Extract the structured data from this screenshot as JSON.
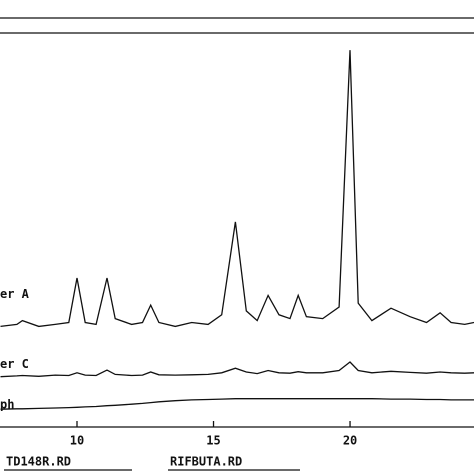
{
  "chart_data": {
    "type": "line",
    "x": [
      7.2,
      7.8,
      8.0,
      8.6,
      9.2,
      9.7,
      10.0,
      10.3,
      10.7,
      11.1,
      11.4,
      12.0,
      12.4,
      12.7,
      13.0,
      13.6,
      14.2,
      14.8,
      15.3,
      15.8,
      16.2,
      16.6,
      17.0,
      17.4,
      17.8,
      18.1,
      18.4,
      19.0,
      19.6,
      20.0,
      20.3,
      20.8,
      21.5,
      22.2,
      22.8,
      23.3,
      23.7,
      24.2,
      24.54
    ],
    "series": [
      {
        "name": "er A",
        "color": "#111111",
        "values": [
          26,
          26.5,
          27.5,
          26,
          26.5,
          27,
          38.5,
          27,
          26.5,
          38.5,
          28,
          26.5,
          27,
          31.5,
          27,
          26,
          27,
          26.5,
          29,
          53,
          30,
          27.5,
          34,
          29,
          28,
          34,
          28.5,
          28,
          31,
          97.4,
          32,
          27.5,
          30.7,
          28.5,
          27,
          29.5,
          27,
          26.5,
          27
        ]
      },
      {
        "name": "er C",
        "color": "#111111",
        "values": [
          13,
          13.2,
          13.3,
          13.1,
          13.4,
          13.3,
          14.0,
          13.4,
          13.3,
          14.7,
          13.6,
          13.3,
          13.4,
          14.2,
          13.5,
          13.4,
          13.5,
          13.6,
          14.0,
          15.2,
          14.2,
          13.8,
          14.6,
          14.0,
          13.9,
          14.3,
          14.0,
          14.0,
          14.6,
          16.8,
          14.6,
          14.0,
          14.4,
          14.1,
          13.9,
          14.2,
          14.0,
          13.9,
          14.0
        ]
      },
      {
        "name": "ph",
        "color": "#111111",
        "values": [
          4.6,
          4.7,
          4.7,
          4.8,
          4.9,
          5.0,
          5.1,
          5.2,
          5.3,
          5.5,
          5.6,
          5.9,
          6.1,
          6.3,
          6.5,
          6.8,
          7.0,
          7.1,
          7.2,
          7.3,
          7.3,
          7.3,
          7.3,
          7.3,
          7.3,
          7.3,
          7.3,
          7.3,
          7.3,
          7.3,
          7.3,
          7.3,
          7.2,
          7.2,
          7.1,
          7.1,
          7.0,
          7.0,
          7.0
        ]
      }
    ],
    "xlim": [
      7.18,
      24.54
    ],
    "xticks": [
      10,
      15,
      20
    ],
    "ylim": [
      0,
      100
    ],
    "annotations": [
      "TD148R.RD",
      "RIFBUTA.RD"
    ]
  }
}
